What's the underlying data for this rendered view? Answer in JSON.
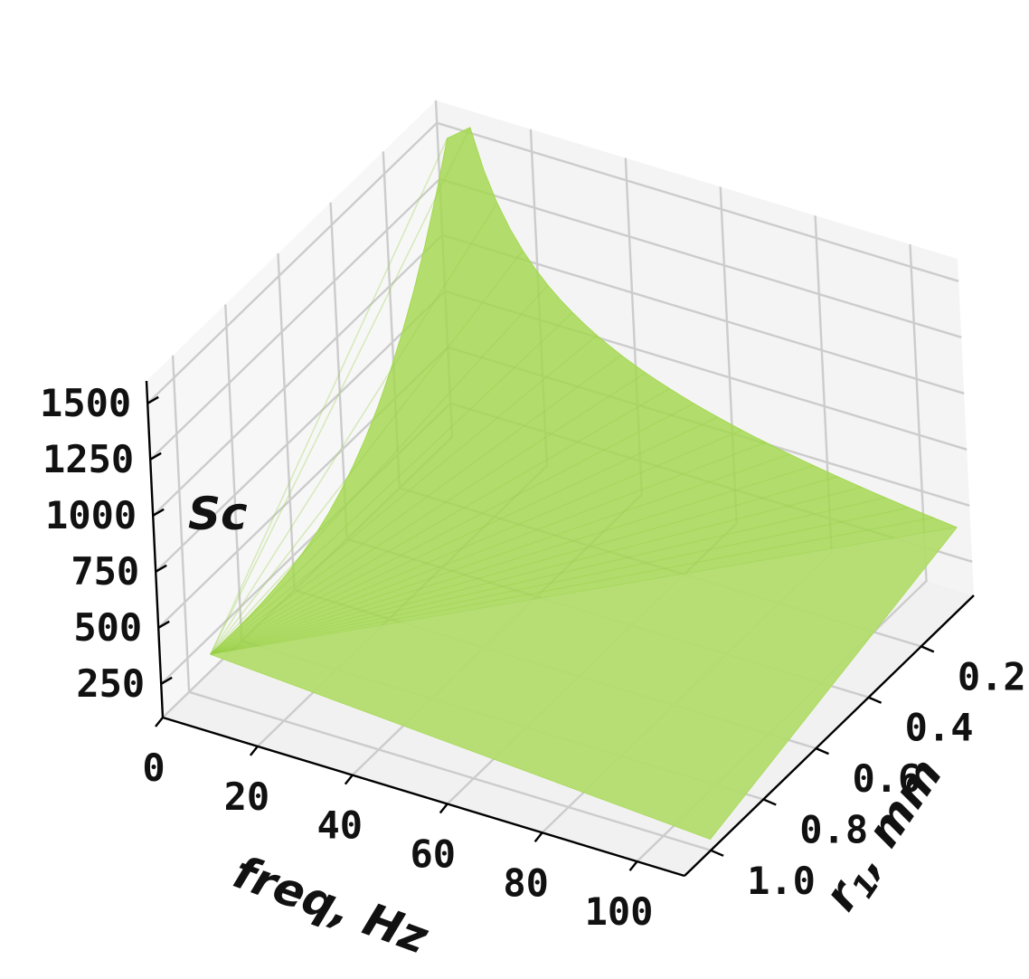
{
  "chart_data": {
    "type": "surface",
    "title": "",
    "surface_color": "#a4d84f",
    "x_axis": {
      "label": "freq, Hz",
      "range": [
        0,
        110
      ],
      "ticks": [
        0,
        20,
        40,
        60,
        80,
        100
      ],
      "tick_labels": [
        "0",
        "20",
        "40",
        "60",
        "80",
        "100"
      ]
    },
    "y_axis": {
      "label_main": "r",
      "label_sub": "1",
      "label_tail": ", mm",
      "range": [
        0.0,
        1.1
      ],
      "ticks": [
        0.2,
        0.4,
        0.6,
        0.8,
        1.0
      ],
      "tick_labels": [
        "0.2",
        "0.4",
        "0.6",
        "0.8",
        "1.0"
      ]
    },
    "z_axis": {
      "label": "Sc",
      "range": [
        100,
        1600
      ],
      "ticks": [
        250,
        500,
        750,
        1000,
        1250,
        1500
      ],
      "tick_labels": [
        "250",
        "500",
        "750",
        "1000",
        "1250",
        "1500"
      ]
    },
    "surface_samples": [
      {
        "freq": 5,
        "r1": 1.0,
        "Sc": 300
      },
      {
        "freq": 5,
        "r1": 0.45,
        "Sc": 620
      },
      {
        "freq": 5,
        "r1": 0.05,
        "Sc": 1520
      },
      {
        "freq": 10,
        "r1": 0.05,
        "Sc": 1600
      },
      {
        "freq": 50,
        "r1": 0.05,
        "Sc": 1100
      },
      {
        "freq": 100,
        "r1": 0.05,
        "Sc": 560
      },
      {
        "freq": 110,
        "r1": 0.05,
        "Sc": 480
      },
      {
        "freq": 110,
        "r1": 1.0,
        "Sc": 150
      }
    ],
    "grid": true,
    "legend": "none"
  }
}
